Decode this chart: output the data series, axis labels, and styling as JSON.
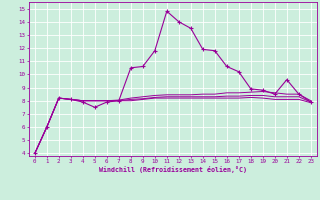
{
  "xlabel": "Windchill (Refroidissement éolien,°C)",
  "bg_color": "#cceedd",
  "line_color": "#990099",
  "xlim": [
    -0.5,
    23.5
  ],
  "ylim": [
    3.8,
    15.5
  ],
  "xticks": [
    0,
    1,
    2,
    3,
    4,
    5,
    6,
    7,
    8,
    9,
    10,
    11,
    12,
    13,
    14,
    15,
    16,
    17,
    18,
    19,
    20,
    21,
    22,
    23
  ],
  "yticks": [
    4,
    5,
    6,
    7,
    8,
    9,
    10,
    11,
    12,
    13,
    14,
    15
  ],
  "curve1_x": [
    0,
    1,
    2,
    3,
    4,
    5,
    6,
    7,
    8,
    9,
    10,
    11,
    12,
    13,
    14,
    15,
    16,
    17,
    18,
    19,
    20,
    21,
    22,
    23
  ],
  "curve1_y": [
    4.0,
    6.0,
    8.2,
    8.1,
    7.9,
    7.5,
    7.9,
    8.0,
    10.5,
    10.6,
    11.8,
    14.8,
    14.0,
    13.5,
    11.9,
    11.8,
    10.6,
    10.2,
    8.9,
    8.8,
    8.5,
    9.6,
    8.5,
    7.9
  ],
  "curve2_x": [
    0,
    1,
    2,
    3,
    4,
    5,
    6,
    7,
    8,
    9,
    10,
    11,
    12,
    13,
    14,
    15,
    16,
    17,
    18,
    19,
    20,
    21,
    22,
    23
  ],
  "curve2_y": [
    4.0,
    6.0,
    8.2,
    8.1,
    8.0,
    8.0,
    8.0,
    8.05,
    8.2,
    8.3,
    8.4,
    8.45,
    8.45,
    8.45,
    8.5,
    8.5,
    8.6,
    8.6,
    8.65,
    8.7,
    8.6,
    8.5,
    8.5,
    8.0
  ],
  "curve3_x": [
    0,
    1,
    2,
    3,
    4,
    5,
    6,
    7,
    8,
    9,
    10,
    11,
    12,
    13,
    14,
    15,
    16,
    17,
    18,
    19,
    20,
    21,
    22,
    23
  ],
  "curve3_y": [
    4.0,
    6.0,
    8.2,
    8.1,
    8.0,
    8.0,
    8.0,
    8.0,
    8.1,
    8.15,
    8.25,
    8.3,
    8.3,
    8.3,
    8.3,
    8.3,
    8.35,
    8.35,
    8.4,
    8.4,
    8.3,
    8.3,
    8.3,
    7.9
  ],
  "curve4_x": [
    0,
    1,
    2,
    3,
    4,
    5,
    6,
    7,
    8,
    9,
    10,
    11,
    12,
    13,
    14,
    15,
    16,
    17,
    18,
    19,
    20,
    21,
    22,
    23
  ],
  "curve4_y": [
    4.0,
    6.0,
    8.2,
    8.1,
    8.0,
    8.0,
    8.0,
    8.0,
    8.0,
    8.1,
    8.2,
    8.2,
    8.2,
    8.2,
    8.2,
    8.2,
    8.2,
    8.2,
    8.25,
    8.2,
    8.1,
    8.1,
    8.1,
    7.85
  ]
}
